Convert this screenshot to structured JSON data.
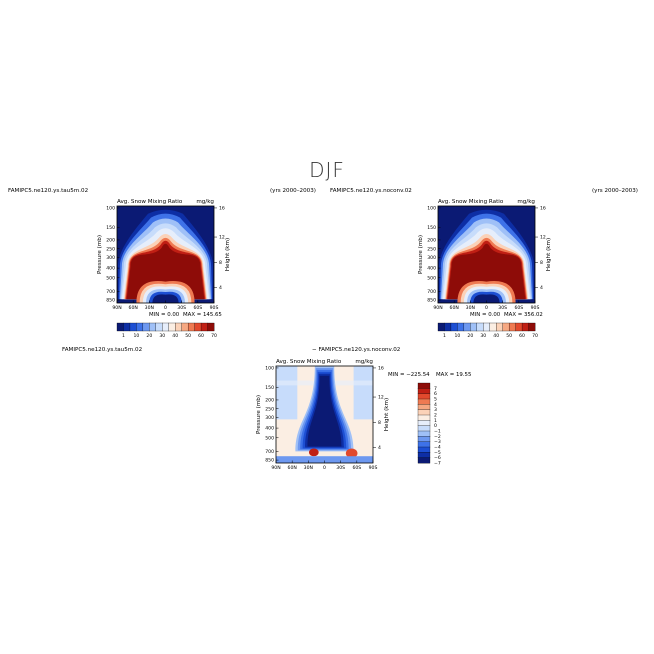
{
  "title": "DJF",
  "palette": {
    "absolute": [
      "#0b1a74",
      "#0d2ea5",
      "#1d4fd3",
      "#3e72e8",
      "#6d98f0",
      "#9fc0f7",
      "#c7dcfb",
      "#e6eefb",
      "#fbeee3",
      "#fbd2b8",
      "#f6a882",
      "#ef7a52",
      "#e2492d",
      "#c01f14",
      "#8e0c08"
    ],
    "difference": [
      "#0b1a74",
      "#0d2ea5",
      "#1d4fd3",
      "#3e72e8",
      "#6d98f0",
      "#9fc0f7",
      "#c7dcfb",
      "#e6eefb",
      "#fbeee3",
      "#fbd2b8",
      "#f6a882",
      "#ef7a52",
      "#e2492d",
      "#c01f14",
      "#8e0c08"
    ]
  },
  "chart_data": [
    {
      "type": "heatmap",
      "name": "panel-1",
      "case_label": "FAMIPC5.ne120.ys.tau5m.02",
      "years_label": "(yrs 2000–2003)",
      "variable": "Avg. Snow Mixing Ratio",
      "units": "mg/kg",
      "ylabel": "Pressure (mb)",
      "ylabel_right": "Height (km)",
      "xticks": [
        "90N",
        "60N",
        "30N",
        "0",
        "30S",
        "60S",
        "90S"
      ],
      "yticks": [
        "100",
        "150",
        "200",
        "250",
        "300",
        "400",
        "500",
        "700",
        "850"
      ],
      "yticks_right": [
        "16",
        "12",
        "8",
        "4"
      ],
      "min_label": "MIN =",
      "min_value": "0.00",
      "max_label": "MAX =",
      "max_value": "145.65",
      "colorbar_labels": [
        "1",
        "10",
        "20",
        "30",
        "40",
        "50",
        "60",
        "70"
      ]
    },
    {
      "type": "heatmap",
      "name": "panel-2",
      "case_label": "FAMIPC5.ne120.ys.noconv.02",
      "years_label": "(yrs 2000–2003)",
      "variable": "Avg. Snow Mixing Ratio",
      "units": "mg/kg",
      "ylabel": "Pressure (mb)",
      "ylabel_right": "Height (km)",
      "xticks": [
        "90N",
        "60N",
        "30N",
        "0",
        "30S",
        "60S",
        "90S"
      ],
      "yticks": [
        "100",
        "150",
        "200",
        "250",
        "300",
        "400",
        "500",
        "700",
        "850"
      ],
      "yticks_right": [
        "16",
        "12",
        "8",
        "4"
      ],
      "min_label": "MIN =",
      "min_value": "0.00",
      "max_label": "MAX =",
      "max_value": "356.02",
      "colorbar_labels": [
        "1",
        "10",
        "20",
        "30",
        "40",
        "50",
        "60",
        "70"
      ]
    },
    {
      "type": "heatmap",
      "name": "panel-difference",
      "case_label_left": "FAMIPC5.ne120.ys.tau5m.02",
      "case_label_right": "− FAMIPC5.ne120.ys.noconv.02",
      "variable": "Avg. Snow Mixing Ratio",
      "units": "mg/kg",
      "ylabel": "Pressure (mb)",
      "ylabel_right": "Height (km)",
      "xticks": [
        "90N",
        "60N",
        "30N",
        "0",
        "30S",
        "60S",
        "90S"
      ],
      "yticks": [
        "100",
        "150",
        "200",
        "250",
        "300",
        "400",
        "500",
        "700",
        "850"
      ],
      "yticks_right": [
        "16",
        "12",
        "8",
        "4"
      ],
      "min_label": "MIN =",
      "min_value": "−225.54",
      "max_label": "MAX =",
      "max_value": "19.55",
      "colorbar_labels": [
        "7",
        "6",
        "5",
        "4",
        "3",
        "2",
        "1",
        "0",
        "−1",
        "−2",
        "−3",
        "−4",
        "−5",
        "−6",
        "−7"
      ]
    }
  ]
}
